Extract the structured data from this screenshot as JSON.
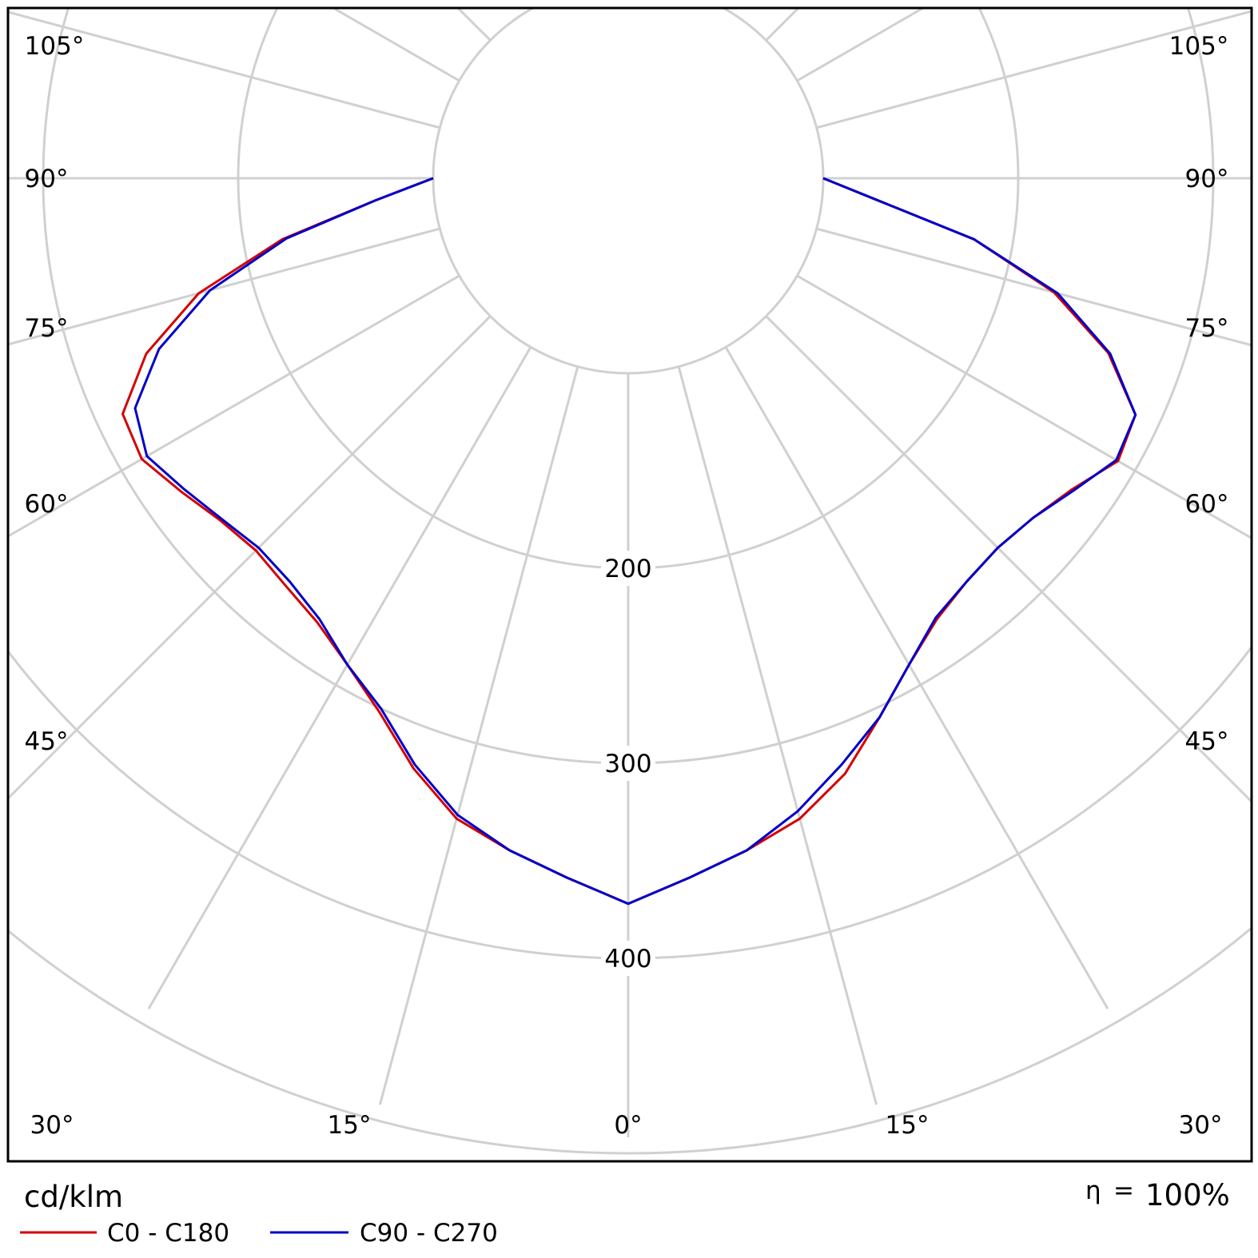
{
  "chart_data": {
    "type": "polar",
    "unit_label": "cd/klm",
    "efficiency": {
      "symbol": "η",
      "equals": "=",
      "value": "100%"
    },
    "radial_ticks": [
      100,
      200,
      300,
      400,
      500
    ],
    "radial_tick_labels": [
      "200",
      "300",
      "400"
    ],
    "angle_tick_labels": [
      {
        "angle": 105,
        "label": "105°"
      },
      {
        "angle": 90,
        "label": "90°"
      },
      {
        "angle": 75,
        "label": "75°"
      },
      {
        "angle": 60,
        "label": "60°"
      },
      {
        "angle": 45,
        "label": "45°"
      },
      {
        "angle": 30,
        "label": "30°"
      },
      {
        "angle": 15,
        "label": "15°"
      },
      {
        "angle": 0,
        "label": "0°"
      }
    ],
    "grid": true,
    "series": [
      {
        "name": "C0 - C180",
        "color": "#d40000",
        "gamma": [
          0,
          5,
          10,
          15,
          20,
          25,
          30,
          35,
          40,
          45,
          50,
          55,
          60,
          65,
          70,
          75,
          80,
          85,
          90
        ],
        "left": [
          372,
          360,
          350,
          340,
          322,
          302,
          288,
          278,
          273,
          270,
          273,
          280,
          288,
          286,
          263,
          228,
          180,
          130,
          100
        ],
        "right": [
          372,
          360,
          350,
          340,
          325,
          305,
          288,
          276,
          270,
          268,
          271,
          278,
          290,
          287,
          262,
          226,
          180,
          128,
          100
        ]
      },
      {
        "name": "C90 - C270",
        "color": "#0000c8",
        "gamma": [
          0,
          5,
          10,
          15,
          20,
          25,
          30,
          35,
          40,
          45,
          50,
          55,
          60,
          65,
          70,
          75,
          80,
          85,
          90
        ],
        "left": [
          372,
          360,
          350,
          338,
          320,
          300,
          288,
          276,
          270,
          268,
          272,
          278,
          285,
          279,
          256,
          222,
          178,
          130,
          100
        ],
        "right": [
          372,
          360,
          350,
          336,
          320,
          305,
          288,
          275,
          270,
          268,
          271,
          279,
          289,
          287,
          263,
          228,
          180,
          128,
          100
        ]
      }
    ]
  }
}
